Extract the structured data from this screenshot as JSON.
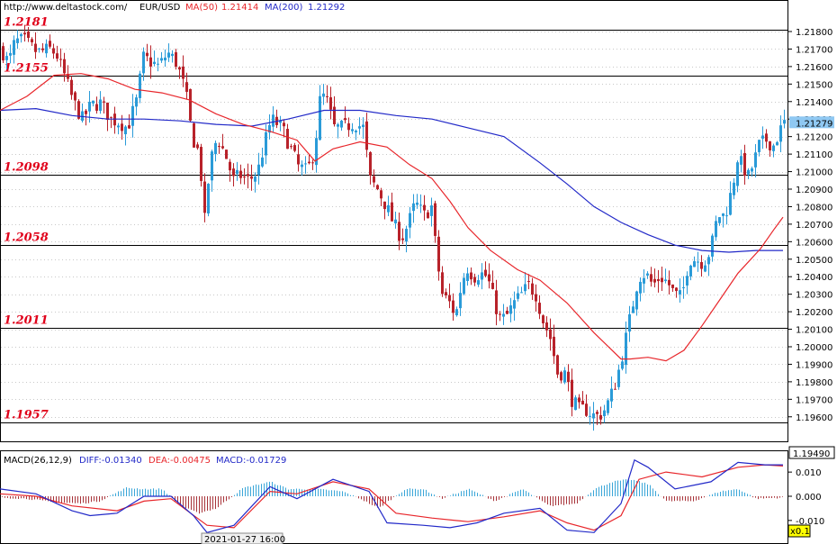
{
  "header": {
    "site": "http://www.deltastock.com/",
    "symbol": "EUR/USD",
    "ma50_label": "MA(50)",
    "ma50_value": "1.21414",
    "ma200_label": "MA(200)",
    "ma200_value": "1.21292"
  },
  "macd_header": {
    "label": "MACD(26,12,9)",
    "diff": "DIFF:-0.01340",
    "dea": "DEA:-0.00475",
    "macd": "MACD:-0.01729"
  },
  "footer": {
    "date_label": "2021-01-27 16:00",
    "zoom_label": "x0.1"
  },
  "colors": {
    "bull": "#2a9bd8",
    "bear": "#b8222a",
    "ma50": "#e8262b",
    "ma200": "#2229c8",
    "level_text": "#e0001a",
    "price_tag_bg": "#8fc8f2",
    "zoom_bg": "#ffff00"
  },
  "chart_data": [
    {
      "type": "candlestick",
      "title": "EUR/USD",
      "y_ticks": [
        "1.21800",
        "1.21700",
        "1.21600",
        "1.21500",
        "1.21400",
        "1.21300",
        "1.21200",
        "1.21100",
        "1.21000",
        "1.20900",
        "1.20800",
        "1.20700",
        "1.20600",
        "1.20500",
        "1.20400",
        "1.20300",
        "1.20200",
        "1.20100",
        "1.20000",
        "1.19900",
        "1.19800",
        "1.19700",
        "1.19600"
      ],
      "ylim": [
        1.1946,
        1.2198
      ],
      "current_price": "1.21279",
      "axis_bottom_value": "1.19490",
      "levels": [
        {
          "label": "1.2181",
          "value": 1.2181
        },
        {
          "label": "1.2155",
          "value": 1.2155
        },
        {
          "label": "1.2098",
          "value": 1.2098
        },
        {
          "label": "1.2058",
          "value": 1.2058
        },
        {
          "label": "1.2011",
          "value": 1.2011
        },
        {
          "label": "1.1957",
          "value": 1.1957
        }
      ],
      "close_path": [
        [
          0,
          1.217
        ],
        [
          8,
          1.2162
        ],
        [
          15,
          1.2174
        ],
        [
          25,
          1.2175
        ],
        [
          40,
          1.2168
        ],
        [
          55,
          1.217
        ],
        [
          62,
          1.2166
        ],
        [
          70,
          1.2155
        ],
        [
          80,
          1.214
        ],
        [
          90,
          1.213
        ],
        [
          100,
          1.2138
        ],
        [
          110,
          1.2139
        ],
        [
          122,
          1.213
        ],
        [
          132,
          1.2128
        ],
        [
          140,
          1.2125
        ],
        [
          150,
          1.214
        ],
        [
          158,
          1.2165
        ],
        [
          165,
          1.2163
        ],
        [
          175,
          1.216
        ],
        [
          185,
          1.2168
        ],
        [
          195,
          1.2162
        ],
        [
          205,
          1.2145
        ],
        [
          212,
          1.212
        ],
        [
          220,
          1.211
        ],
        [
          226,
          1.2072
        ],
        [
          232,
          1.2105
        ],
        [
          240,
          1.212
        ],
        [
          250,
          1.2108
        ],
        [
          258,
          1.2095
        ],
        [
          265,
          1.2098
        ],
        [
          275,
          1.2095
        ],
        [
          285,
          1.21
        ],
        [
          292,
          1.2115
        ],
        [
          300,
          1.213
        ],
        [
          312,
          1.2125
        ],
        [
          320,
          1.2115
        ],
        [
          330,
          1.2103
        ],
        [
          340,
          1.21
        ],
        [
          348,
          1.2112
        ],
        [
          355,
          1.2145
        ],
        [
          362,
          1.214
        ],
        [
          370,
          1.2125
        ],
        [
          380,
          1.2125
        ],
        [
          392,
          1.2128
        ],
        [
          402,
          1.2125
        ],
        [
          410,
          1.2095
        ],
        [
          418,
          1.209
        ],
        [
          428,
          1.208
        ],
        [
          436,
          1.207
        ],
        [
          445,
          1.2062
        ],
        [
          452,
          1.207
        ],
        [
          460,
          1.2082
        ],
        [
          470,
          1.2075
        ],
        [
          478,
          1.208
        ],
        [
          484,
          1.205
        ],
        [
          490,
          1.203
        ],
        [
          498,
          1.2025
        ],
        [
          505,
          1.2018
        ],
        [
          512,
          1.2038
        ],
        [
          518,
          1.2045
        ],
        [
          525,
          1.204
        ],
        [
          532,
          1.2042
        ],
        [
          540,
          1.204
        ],
        [
          548,
          1.2025
        ],
        [
          555,
          1.2015
        ],
        [
          562,
          1.2018
        ],
        [
          570,
          1.2025
        ],
        [
          578,
          1.203
        ],
        [
          586,
          1.2035
        ],
        [
          594,
          1.203
        ],
        [
          602,
          1.2015
        ],
        [
          610,
          1.2005
        ],
        [
          618,
          1.1985
        ],
        [
          626,
          1.1985
        ],
        [
          634,
          1.197
        ],
        [
          642,
          1.1964
        ],
        [
          650,
          1.1964
        ],
        [
          660,
          1.196
        ],
        [
          668,
          1.1962
        ],
        [
          676,
          1.197
        ],
        [
          684,
          1.1982
        ],
        [
          692,
          1.2
        ],
        [
          700,
          1.202
        ],
        [
          708,
          1.204
        ],
        [
          716,
          1.2042
        ],
        [
          724,
          1.2035
        ],
        [
          732,
          1.204
        ],
        [
          740,
          1.2037
        ],
        [
          748,
          1.203
        ],
        [
          756,
          1.2028
        ],
        [
          764,
          1.205
        ],
        [
          772,
          1.205
        ],
        [
          780,
          1.2048
        ],
        [
          788,
          1.2055
        ],
        [
          796,
          1.2075
        ],
        [
          804,
          1.2075
        ],
        [
          812,
          1.209
        ],
        [
          818,
          1.2108
        ],
        [
          824,
          1.2103
        ],
        [
          830,
          1.2097
        ],
        [
          836,
          1.2105
        ],
        [
          842,
          1.2115
        ],
        [
          850,
          1.2118
        ],
        [
          858,
          1.2115
        ],
        [
          864,
          1.2122
        ],
        [
          870,
          1.2128
        ]
      ],
      "ma50_path": [
        [
          0,
          1.2135
        ],
        [
          30,
          1.2143
        ],
        [
          60,
          1.2155
        ],
        [
          90,
          1.2156
        ],
        [
          120,
          1.2153
        ],
        [
          150,
          1.2147
        ],
        [
          180,
          1.2145
        ],
        [
          210,
          1.2141
        ],
        [
          240,
          1.2133
        ],
        [
          270,
          1.2127
        ],
        [
          300,
          1.2123
        ],
        [
          330,
          1.2118
        ],
        [
          350,
          1.2106
        ],
        [
          370,
          1.2113
        ],
        [
          400,
          1.2117
        ],
        [
          430,
          1.2114
        ],
        [
          455,
          1.2104
        ],
        [
          480,
          1.2096
        ],
        [
          500,
          1.2083
        ],
        [
          520,
          1.2068
        ],
        [
          545,
          1.2055
        ],
        [
          575,
          1.2044
        ],
        [
          600,
          1.2038
        ],
        [
          630,
          1.2025
        ],
        [
          660,
          1.2008
        ],
        [
          690,
          1.1993
        ],
        [
          700,
          1.1993
        ],
        [
          720,
          1.1994
        ],
        [
          740,
          1.1992
        ],
        [
          760,
          1.1998
        ],
        [
          780,
          1.2012
        ],
        [
          800,
          1.2027
        ],
        [
          820,
          1.2042
        ],
        [
          845,
          1.2056
        ],
        [
          860,
          1.2067
        ],
        [
          870,
          1.2074
        ]
      ],
      "ma200_path": [
        [
          0,
          1.2135
        ],
        [
          40,
          1.2136
        ],
        [
          80,
          1.2132
        ],
        [
          120,
          1.213
        ],
        [
          160,
          1.213
        ],
        [
          200,
          1.2129
        ],
        [
          240,
          1.2127
        ],
        [
          280,
          1.2126
        ],
        [
          320,
          1.213
        ],
        [
          360,
          1.2135
        ],
        [
          400,
          1.2135
        ],
        [
          440,
          1.2132
        ],
        [
          480,
          1.213
        ],
        [
          520,
          1.2125
        ],
        [
          560,
          1.212
        ],
        [
          600,
          1.2105
        ],
        [
          630,
          1.2093
        ],
        [
          660,
          1.208
        ],
        [
          690,
          1.2071
        ],
        [
          720,
          1.2064
        ],
        [
          750,
          1.2058
        ],
        [
          780,
          1.2055
        ],
        [
          810,
          1.2054
        ],
        [
          840,
          1.2055
        ],
        [
          870,
          1.2055
        ]
      ]
    },
    {
      "type": "macd",
      "title": "MACD(26,12,9)",
      "y_ticks": [
        "0.010",
        "0.000",
        "-0.010"
      ],
      "ylim": [
        -0.0175,
        0.0175
      ],
      "diff_path": [
        [
          0,
          0.003
        ],
        [
          40,
          0.001
        ],
        [
          80,
          -0.006
        ],
        [
          100,
          -0.008
        ],
        [
          130,
          -0.007
        ],
        [
          160,
          0.0
        ],
        [
          190,
          0.0
        ],
        [
          215,
          -0.008
        ],
        [
          230,
          -0.015
        ],
        [
          260,
          -0.012
        ],
        [
          300,
          0.004
        ],
        [
          330,
          -0.001
        ],
        [
          370,
          0.007
        ],
        [
          410,
          0.002
        ],
        [
          430,
          -0.011
        ],
        [
          470,
          -0.012
        ],
        [
          500,
          -0.013
        ],
        [
          530,
          -0.011
        ],
        [
          560,
          -0.007
        ],
        [
          600,
          -0.005
        ],
        [
          630,
          -0.014
        ],
        [
          660,
          -0.015
        ],
        [
          690,
          -0.003
        ],
        [
          705,
          0.015
        ],
        [
          720,
          0.012
        ],
        [
          750,
          0.003
        ],
        [
          790,
          0.006
        ],
        [
          820,
          0.014
        ],
        [
          850,
          0.013
        ],
        [
          870,
          0.013
        ]
      ],
      "dea_path": [
        [
          0,
          0.001
        ],
        [
          40,
          0.0
        ],
        [
          80,
          -0.004
        ],
        [
          130,
          -0.006
        ],
        [
          160,
          -0.002
        ],
        [
          190,
          -0.001
        ],
        [
          230,
          -0.012
        ],
        [
          260,
          -0.013
        ],
        [
          300,
          0.002
        ],
        [
          330,
          0.001
        ],
        [
          370,
          0.006
        ],
        [
          410,
          0.003
        ],
        [
          440,
          -0.007
        ],
        [
          480,
          -0.009
        ],
        [
          520,
          -0.0105
        ],
        [
          560,
          -0.0085
        ],
        [
          600,
          -0.006
        ],
        [
          630,
          -0.011
        ],
        [
          660,
          -0.014
        ],
        [
          690,
          -0.008
        ],
        [
          710,
          0.007
        ],
        [
          740,
          0.01
        ],
        [
          780,
          0.008
        ],
        [
          820,
          0.012
        ],
        [
          850,
          0.013
        ],
        [
          870,
          0.0125
        ]
      ],
      "hist_path": [
        [
          0,
          -0.0005
        ],
        [
          30,
          -0.001
        ],
        [
          60,
          -0.0025
        ],
        [
          90,
          -0.003
        ],
        [
          110,
          -0.002
        ],
        [
          140,
          0.0035
        ],
        [
          160,
          0.003
        ],
        [
          180,
          0.003
        ],
        [
          200,
          -0.004
        ],
        [
          220,
          -0.007
        ],
        [
          240,
          -0.005
        ],
        [
          270,
          0.0035
        ],
        [
          300,
          0.006
        ],
        [
          320,
          0.003
        ],
        [
          350,
          0.003
        ],
        [
          380,
          0.002
        ],
        [
          400,
          -0.001
        ],
        [
          420,
          -0.005
        ],
        [
          450,
          0.003
        ],
        [
          470,
          0.003
        ],
        [
          490,
          -0.001
        ],
        [
          520,
          0.003
        ],
        [
          550,
          -0.002
        ],
        [
          580,
          0.003
        ],
        [
          610,
          -0.004
        ],
        [
          640,
          -0.003
        ],
        [
          660,
          0.003
        ],
        [
          680,
          0.006
        ],
        [
          700,
          0.007
        ],
        [
          720,
          0.005
        ],
        [
          740,
          -0.002
        ],
        [
          770,
          -0.002
        ],
        [
          800,
          0.002
        ],
        [
          820,
          0.003
        ],
        [
          840,
          -0.001
        ],
        [
          870,
          -0.0005
        ]
      ]
    }
  ]
}
